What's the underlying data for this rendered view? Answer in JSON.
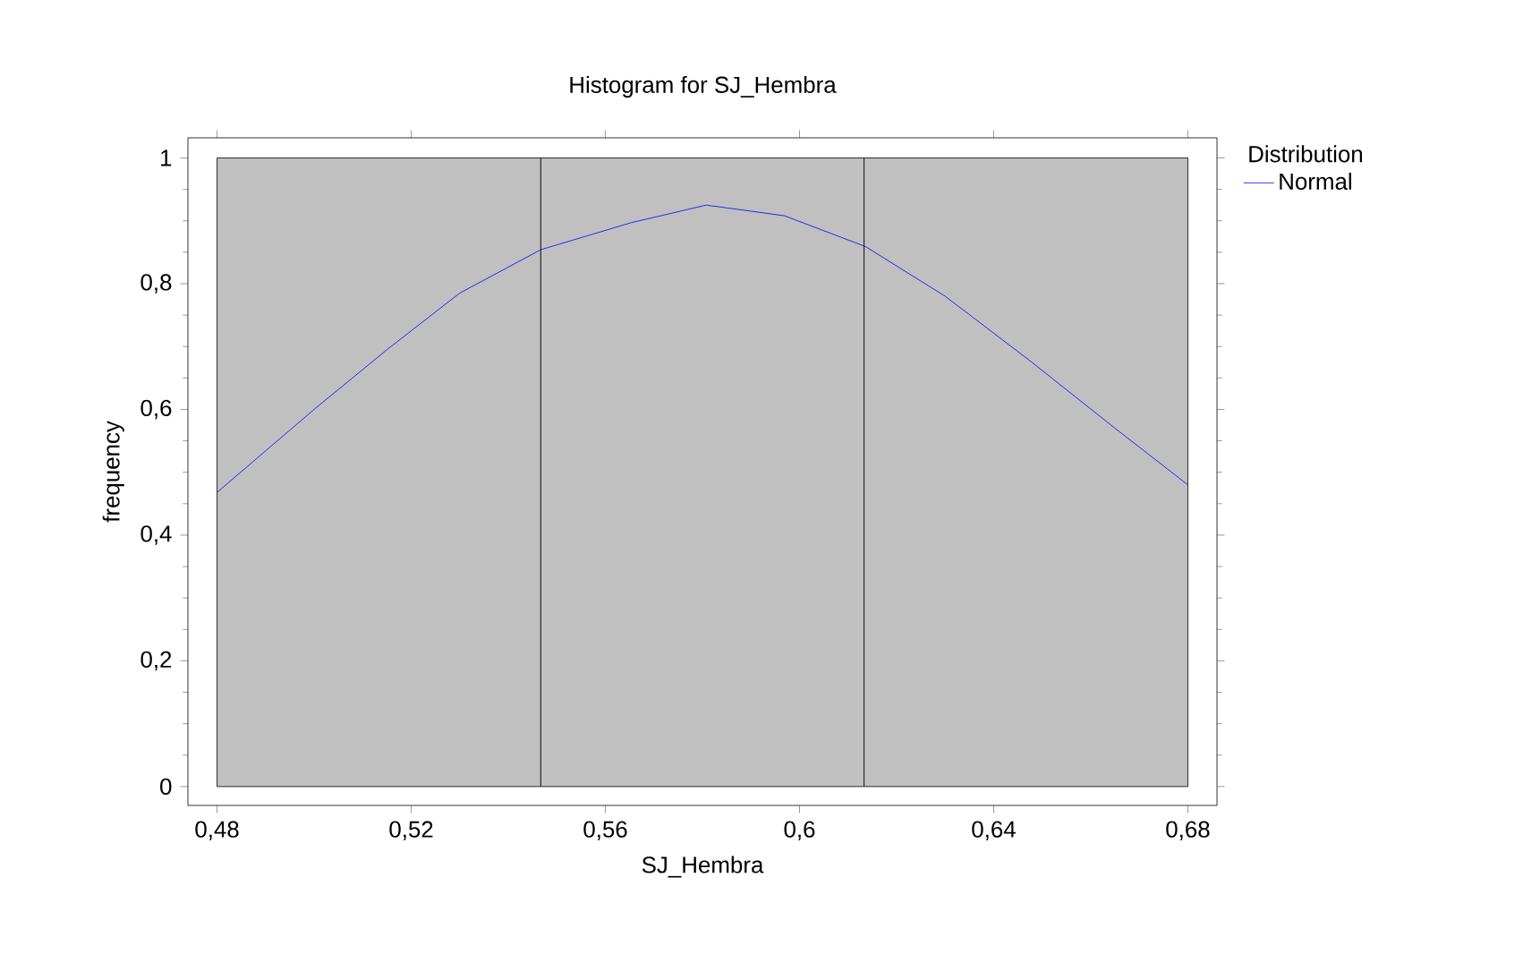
{
  "chart_data": {
    "type": "histogram",
    "title": "Histogram for SJ_Hembra",
    "xlabel": "SJ_Hembra",
    "ylabel": "frequency",
    "legend_title": "Distribution",
    "bins": [
      0.48,
      0.5467,
      0.6133,
      0.68
    ],
    "values": [
      1,
      1,
      1
    ],
    "color": "#c0c0c0",
    "series": [
      {
        "type": "line",
        "name": "Normal",
        "color": "#0000ff",
        "x": [
          0.48,
          0.5,
          0.515,
          0.53,
          0.5467,
          0.5653,
          0.5808,
          0.5969,
          0.6136,
          0.63,
          0.6472,
          0.665,
          0.68
        ],
        "values": [
          0.468,
          0.6,
          0.695,
          0.785,
          0.854,
          0.897,
          0.925,
          0.908,
          0.859,
          0.78,
          0.679,
          0.57,
          0.48
        ]
      }
    ],
    "xlim": [
      0.474,
      0.686
    ],
    "ylim": [
      -0.03,
      1.032
    ],
    "xticks": [
      {
        "value": 0.48,
        "label": "0,48"
      },
      {
        "value": 0.52,
        "label": "0,52"
      },
      {
        "value": 0.56,
        "label": "0,56"
      },
      {
        "value": 0.6,
        "label": "0,6"
      },
      {
        "value": 0.64,
        "label": "0,64"
      },
      {
        "value": 0.68,
        "label": "0,68"
      }
    ],
    "yticks": [
      0,
      {
        "value": 0.2,
        "label": "0,2"
      },
      {
        "value": 0.4,
        "label": "0,4"
      },
      {
        "value": 0.6,
        "label": "0,6"
      },
      {
        "value": 0.8,
        "label": "0,8"
      },
      1
    ],
    "legend": "right",
    "grid": false
  }
}
